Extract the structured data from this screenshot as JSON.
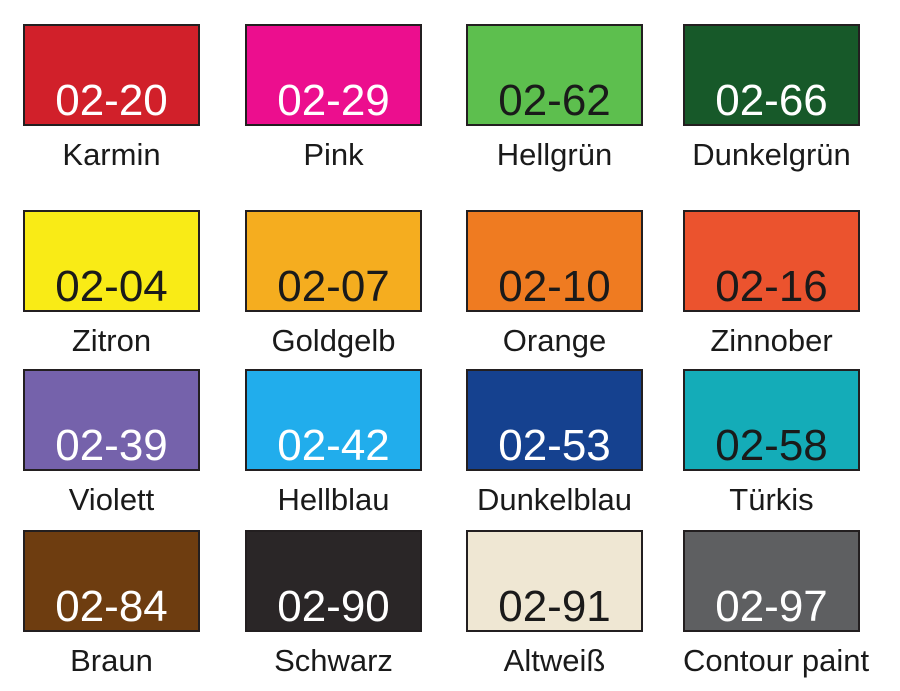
{
  "page": {
    "background": "#ffffff",
    "swatch_border_color": "#231f20",
    "label_color": "#1a1a1a"
  },
  "swatches": [
    {
      "code": "02-20",
      "label": "Karmin",
      "color": "#d1202a",
      "code_color": "#ffffff"
    },
    {
      "code": "02-29",
      "label": "Pink",
      "color": "#ec0e8e",
      "code_color": "#ffffff"
    },
    {
      "code": "02-62",
      "label": "Hellgrün",
      "color": "#5dbf4e",
      "code_color": "#1a1a1a"
    },
    {
      "code": "02-66",
      "label": "Dunkelgrün",
      "color": "#175929",
      "code_color": "#ffffff"
    },
    {
      "code": "02-04",
      "label": "Zitron",
      "color": "#f9eb16",
      "code_color": "#1a1a1a"
    },
    {
      "code": "02-07",
      "label": "Goldgelb",
      "color": "#f5ad1f",
      "code_color": "#1a1a1a"
    },
    {
      "code": "02-10",
      "label": "Orange",
      "color": "#ef7b21",
      "code_color": "#1a1a1a"
    },
    {
      "code": "02-16",
      "label": "Zinnober",
      "color": "#eb532e",
      "code_color": "#1a1a1a"
    },
    {
      "code": "02-39",
      "label": "Violett",
      "color": "#7562ab",
      "code_color": "#ffffff"
    },
    {
      "code": "02-42",
      "label": "Hellblau",
      "color": "#21adec",
      "code_color": "#ffffff"
    },
    {
      "code": "02-53",
      "label": "Dunkelblau",
      "color": "#15418f",
      "code_color": "#ffffff"
    },
    {
      "code": "02-58",
      "label": "Türkis",
      "color": "#14acb8",
      "code_color": "#1a1a1a"
    },
    {
      "code": "02-84",
      "label": "Braun",
      "color": "#6e3d10",
      "code_color": "#ffffff"
    },
    {
      "code": "02-90",
      "label": "Schwarz",
      "color": "#2a2627",
      "code_color": "#ffffff"
    },
    {
      "code": "02-91",
      "label": "Altweiß",
      "color": "#efe7d3",
      "code_color": "#1a1a1a"
    },
    {
      "code": "02-97",
      "label": "Contour paint",
      "color": "#5e5f61",
      "code_color": "#ffffff"
    }
  ]
}
